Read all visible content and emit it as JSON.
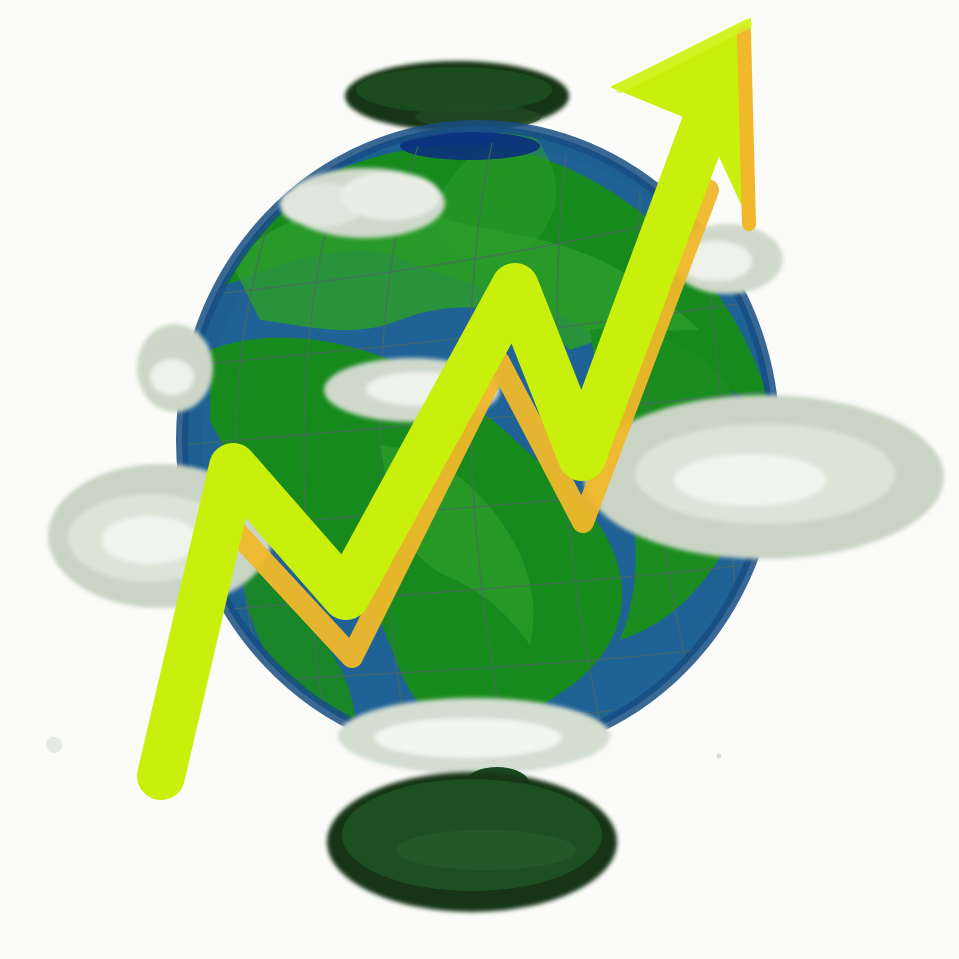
{
  "illustration": {
    "subject": "",
    "background_color": "#fbfbf9",
    "colors": {
      "ocean": "#1d5f91",
      "ocean_dark": "#174d82",
      "land": "#178a1d",
      "land_light": "#2c9c2a",
      "stand": "#1b4a1f",
      "stand_dark": "#123618",
      "cloud": "#cfd9cb",
      "cloud_light": "#eef2ea",
      "arrow": "#c9ef0c",
      "arrow_shadow": "#f0b82a",
      "grid_line": "#4a6a62"
    },
    "icon_names": [
      "globe-icon",
      "trend-up-arrow-icon",
      "cloud-icon"
    ]
  }
}
